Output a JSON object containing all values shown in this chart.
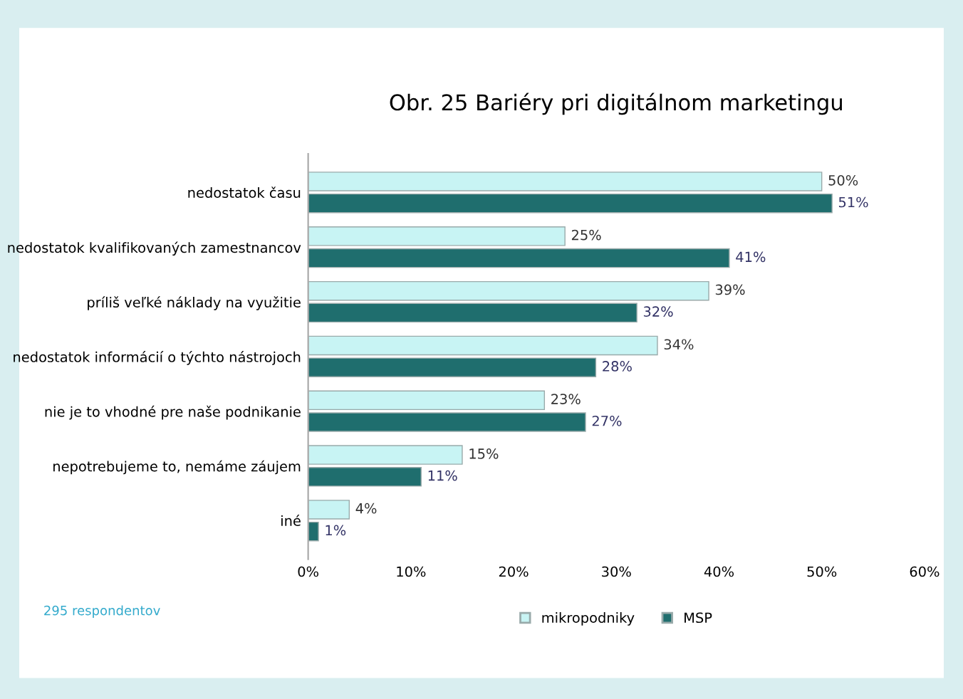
{
  "chart_data": {
    "type": "bar",
    "orientation": "horizontal",
    "title": "Obr. 25 Bariéry pri digitálnom marketingu",
    "categories": [
      "nedostatok času",
      "nedostatok kvalifikovaných zamestnancov",
      "príliš veľké náklady na využitie",
      "nedostatok informácií o týchto nástrojoch",
      "nie je to vhodné pre naše podnikanie",
      "nepotrebujeme to, nemáme záujem",
      "iné"
    ],
    "series": [
      {
        "name": "mikropodniky",
        "color": "#c8f4f4",
        "values": [
          50,
          25,
          39,
          34,
          23,
          15,
          4
        ],
        "value_labels": [
          "50%",
          "25%",
          "39%",
          "34%",
          "23%",
          "15%",
          "4%"
        ]
      },
      {
        "name": "MSP",
        "color": "#1f6e6e",
        "values": [
          51,
          41,
          32,
          28,
          27,
          11,
          1
        ],
        "value_labels": [
          "51%",
          "41%",
          "32%",
          "28%",
          "27%",
          "11%",
          "1%"
        ]
      }
    ],
    "xlim": [
      0,
      60
    ],
    "xticks": [
      {
        "value": 0,
        "label": "0%"
      },
      {
        "value": 10,
        "label": "10%"
      },
      {
        "value": 20,
        "label": "20%"
      },
      {
        "value": 30,
        "label": "30%"
      },
      {
        "value": 40,
        "label": "40%"
      },
      {
        "value": 50,
        "label": "50%"
      },
      {
        "value": 60,
        "label": "60%"
      }
    ],
    "grid": false,
    "legend": "bottom",
    "annotations": [
      "295 respondentov"
    ]
  }
}
